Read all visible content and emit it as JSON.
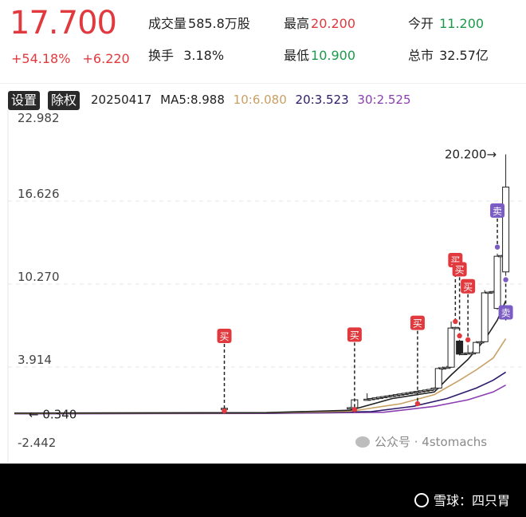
{
  "quote": {
    "price": "17.700",
    "change_pct": "+54.18%",
    "change_amt": "+6.220",
    "volume_label": "成交量",
    "volume_value": "585.8万股",
    "turnover_label": "换手",
    "turnover_value": "3.18%",
    "high_label": "最高",
    "high_value": "20.200",
    "low_label": "最低",
    "low_value": "10.900",
    "open_label": "今开",
    "open_value": "11.200",
    "mktcap_label": "总市",
    "mktcap_value": "32.57亿"
  },
  "toolbar": {
    "settings_label": "设置",
    "adjust_label": "除权",
    "date": "20250417",
    "ma5": "MA5:8.988",
    "ma10": "10:6.080",
    "ma20": "20:3.523",
    "ma30": "30:2.525"
  },
  "colors": {
    "up": "#e0393e",
    "down": "#1a9a4a",
    "ma5": "#222222",
    "ma10": "#c9a063",
    "ma20": "#2d1a6b",
    "ma30": "#8a3fb0",
    "sell_badge": "#7b5cc4"
  },
  "chart_data": {
    "type": "candlestick",
    "y_ticks": [
      "22.982",
      "16.626",
      "10.270",
      "3.914",
      "-2.442"
    ],
    "ylim": [
      -2.442,
      22.982
    ],
    "grid": true,
    "max_label": "20.200→",
    "min_label": "← 0.340",
    "buy_label": "买",
    "sell_label": "卖",
    "candles": [
      {
        "i": 50,
        "open": 0.7,
        "close": 0.75,
        "high": 0.8,
        "low": 0.65
      },
      {
        "i": 80,
        "open": 0.75,
        "close": 0.8,
        "high": 0.85,
        "low": 0.7
      },
      {
        "i": 81,
        "open": 0.8,
        "close": 1.4,
        "high": 1.5,
        "low": 0.78
      },
      {
        "i": 84,
        "open": 1.4,
        "close": 1.45,
        "high": 1.9,
        "low": 1.35
      },
      {
        "i": 85,
        "open": 1.45,
        "close": 1.5,
        "high": 1.55,
        "low": 1.4
      },
      {
        "i": 86,
        "open": 1.5,
        "close": 1.55,
        "high": 1.6,
        "low": 1.45
      },
      {
        "i": 87,
        "open": 1.55,
        "close": 1.6,
        "high": 1.65,
        "low": 1.5
      },
      {
        "i": 88,
        "open": 1.6,
        "close": 1.65,
        "high": 1.7,
        "low": 1.55
      },
      {
        "i": 89,
        "open": 1.65,
        "close": 1.7,
        "high": 1.75,
        "low": 1.6
      },
      {
        "i": 90,
        "open": 1.7,
        "close": 1.75,
        "high": 1.8,
        "low": 1.65
      },
      {
        "i": 91,
        "open": 1.75,
        "close": 1.8,
        "high": 1.85,
        "low": 1.7
      },
      {
        "i": 92,
        "open": 1.8,
        "close": 1.85,
        "high": 1.9,
        "low": 1.75
      },
      {
        "i": 93,
        "open": 1.85,
        "close": 1.9,
        "high": 1.95,
        "low": 1.8
      },
      {
        "i": 94,
        "open": 1.9,
        "close": 1.95,
        "high": 2.0,
        "low": 1.85
      },
      {
        "i": 95,
        "open": 1.95,
        "close": 2.0,
        "high": 2.05,
        "low": 1.9
      },
      {
        "i": 96,
        "open": 2.0,
        "close": 2.05,
        "high": 2.1,
        "low": 1.95
      },
      {
        "i": 97,
        "open": 2.05,
        "close": 2.1,
        "high": 2.15,
        "low": 2.0
      },
      {
        "i": 98,
        "open": 2.1,
        "close": 2.15,
        "high": 2.2,
        "low": 2.05
      },
      {
        "i": 99,
        "open": 2.15,
        "close": 2.2,
        "high": 2.25,
        "low": 2.1
      },
      {
        "i": 100,
        "open": 2.2,
        "close": 2.3,
        "high": 2.35,
        "low": 2.15
      },
      {
        "i": 101,
        "open": 2.3,
        "close": 3.8,
        "high": 3.9,
        "low": 2.25
      },
      {
        "i": 102,
        "open": 3.8,
        "close": 3.85,
        "high": 3.95,
        "low": 3.7
      },
      {
        "i": 103,
        "open": 3.85,
        "close": 3.9,
        "high": 4.0,
        "low": 3.8
      },
      {
        "i": 104,
        "open": 3.9,
        "close": 6.9,
        "high": 7.4,
        "low": 3.85
      },
      {
        "i": 105,
        "open": 6.9,
        "close": 6.95,
        "high": 7.0,
        "low": 6.8
      },
      {
        "i": 106,
        "open": 5.9,
        "close": 4.9,
        "high": 6.0,
        "low": 4.8
      },
      {
        "i": 107,
        "open": 4.9,
        "close": 4.95,
        "high": 5.0,
        "low": 4.85
      },
      {
        "i": 108,
        "open": 4.95,
        "close": 5.0,
        "high": 5.6,
        "low": 4.9
      },
      {
        "i": 109,
        "open": 4.95,
        "close": 5.0,
        "high": 5.1,
        "low": 4.9
      },
      {
        "i": 110,
        "open": 5.0,
        "close": 5.8,
        "high": 5.9,
        "low": 4.95
      },
      {
        "i": 111,
        "open": 5.8,
        "close": 5.85,
        "high": 5.9,
        "low": 5.75
      },
      {
        "i": 112,
        "open": 5.85,
        "close": 9.6,
        "high": 9.8,
        "low": 5.8
      },
      {
        "i": 113,
        "open": 9.6,
        "close": 9.65,
        "high": 9.7,
        "low": 9.55
      },
      {
        "i": 114,
        "open": 9.65,
        "close": 9.7,
        "high": 9.75,
        "low": 9.6
      },
      {
        "i": 115,
        "open": 8.4,
        "close": 12.4,
        "high": 12.6,
        "low": 8.3
      },
      {
        "i": 116,
        "open": 12.4,
        "close": 12.45,
        "high": 12.5,
        "low": 12.35
      },
      {
        "i": 117,
        "open": 11.2,
        "close": 17.7,
        "high": 20.2,
        "low": 10.9
      }
    ],
    "ma5": [
      {
        "i": 0,
        "v": 0.38
      },
      {
        "i": 60,
        "v": 0.42
      },
      {
        "i": 80,
        "v": 0.6
      },
      {
        "i": 90,
        "v": 1.5
      },
      {
        "i": 100,
        "v": 2.0
      },
      {
        "i": 104,
        "v": 3.3
      },
      {
        "i": 108,
        "v": 4.5
      },
      {
        "i": 112,
        "v": 6.0
      },
      {
        "i": 115,
        "v": 7.5
      },
      {
        "i": 117,
        "v": 8.988
      }
    ],
    "ma10": [
      {
        "i": 0,
        "v": 0.36
      },
      {
        "i": 60,
        "v": 0.4
      },
      {
        "i": 80,
        "v": 0.52
      },
      {
        "i": 92,
        "v": 1.1
      },
      {
        "i": 100,
        "v": 1.8
      },
      {
        "i": 106,
        "v": 2.9
      },
      {
        "i": 110,
        "v": 3.7
      },
      {
        "i": 114,
        "v": 4.6
      },
      {
        "i": 117,
        "v": 6.08
      }
    ],
    "ma20": [
      {
        "i": 0,
        "v": 0.34
      },
      {
        "i": 60,
        "v": 0.37
      },
      {
        "i": 85,
        "v": 0.5
      },
      {
        "i": 95,
        "v": 0.9
      },
      {
        "i": 103,
        "v": 1.5
      },
      {
        "i": 110,
        "v": 2.3
      },
      {
        "i": 114,
        "v": 2.9
      },
      {
        "i": 117,
        "v": 3.523
      }
    ],
    "ma30": [
      {
        "i": 0,
        "v": 0.33
      },
      {
        "i": 60,
        "v": 0.36
      },
      {
        "i": 88,
        "v": 0.45
      },
      {
        "i": 100,
        "v": 0.9
      },
      {
        "i": 108,
        "v": 1.4
      },
      {
        "i": 114,
        "v": 2.0
      },
      {
        "i": 117,
        "v": 2.525
      }
    ],
    "signals": [
      {
        "type": "buy",
        "i": 50,
        "price": 0.55,
        "badge_y": 6.3
      },
      {
        "type": "buy",
        "i": 81,
        "price": 0.65,
        "badge_y": 6.4
      },
      {
        "type": "buy",
        "i": 96,
        "price": 1.1,
        "badge_y": 7.3
      },
      {
        "type": "buy",
        "i": 105,
        "price": 7.4,
        "badge_y": 12.1
      },
      {
        "type": "buy",
        "i": 106,
        "price": 6.3,
        "badge_y": 11.4
      },
      {
        "type": "buy",
        "i": 108,
        "price": 6.0,
        "badge_y": 10.1
      },
      {
        "type": "sell",
        "i": 115,
        "price": 13.1,
        "badge_y": 15.9
      },
      {
        "type": "sell",
        "i": 117,
        "price": 10.6,
        "badge_y": 8.1
      }
    ]
  },
  "watermark": {
    "wechat": "公众号 · 4stomachs",
    "xueqiu": "雪球：四只胃"
  }
}
